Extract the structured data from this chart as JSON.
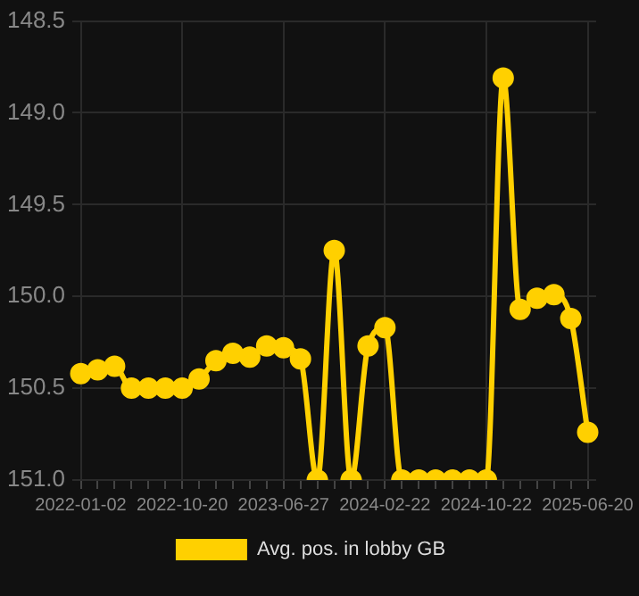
{
  "chart_data": {
    "type": "line",
    "categories": [
      "2022-01-02",
      null,
      null,
      null,
      null,
      null,
      "2022-10-20",
      null,
      null,
      null,
      null,
      null,
      "2023-06-27",
      null,
      null,
      null,
      null,
      null,
      "2024-02-22",
      null,
      null,
      null,
      null,
      null,
      "2024-10-22",
      null,
      null,
      null,
      null,
      null,
      "2025-06-20"
    ],
    "series": [
      {
        "name": "Avg. pos. in lobby GB",
        "color": "#ffd000",
        "values": [
          150.42,
          150.4,
          150.38,
          150.5,
          150.5,
          150.5,
          150.5,
          150.45,
          150.35,
          150.31,
          150.33,
          150.27,
          150.28,
          150.34,
          151.0,
          149.75,
          151.0,
          150.27,
          150.17,
          151.0,
          151.0,
          151.0,
          151.0,
          151.0,
          151.0,
          148.81,
          150.07,
          150.01,
          149.99,
          150.12,
          150.74
        ]
      }
    ],
    "ylim": [
      151.0,
      148.5
    ],
    "yticks": [
      148.5,
      {
        "value": 149,
        "label": "149.0"
      },
      149.5,
      {
        "value": 150,
        "label": "150.0"
      },
      150.5,
      {
        "value": 151,
        "label": "151.0"
      }
    ],
    "grid": true,
    "legend": "bottom",
    "marker": "circle",
    "line_style": "solid"
  }
}
